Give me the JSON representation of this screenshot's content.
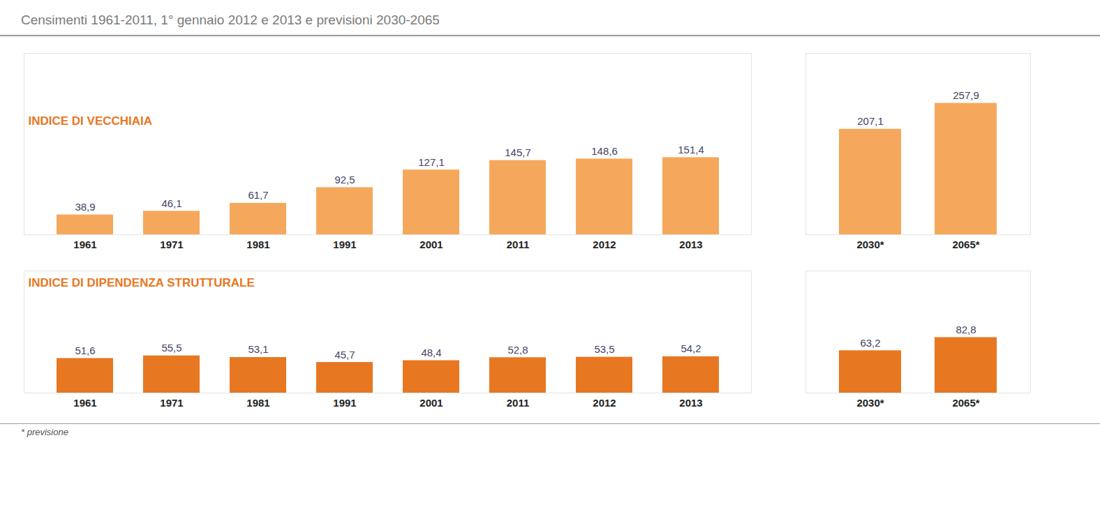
{
  "chart_data": [
    {
      "type": "bar",
      "title": "Censimenti 1961-2011, 1° gennaio 2012 e 2013 e previsioni 2030-2065",
      "categories": [
        "1961",
        "1971",
        "1981",
        "1991",
        "2001",
        "2011",
        "2012",
        "2013"
      ],
      "values": [
        38.9,
        46.1,
        61.7,
        92.5,
        127.1,
        145.7,
        148.6,
        151.4
      ],
      "value_labels": [
        "38,9",
        "46,1",
        "61,7",
        "92,5",
        "127,1",
        "145,7",
        "148,6",
        "151,4"
      ],
      "color": "#f5a85c",
      "ylim": [
        0,
        355.902
      ],
      "data_labels": true,
      "tick_labels": "x",
      "annotations": [
        {
          "text": "INDICE DI VECCHIAIA",
          "color": "#e87722"
        }
      ]
    },
    {
      "type": "bar",
      "categories": [
        "2030*",
        "2065*"
      ],
      "values": [
        207.1,
        257.9
      ],
      "value_labels": [
        "207,1",
        "257,9"
      ],
      "color": "#f5a85c",
      "ylim": [
        0,
        355.902
      ],
      "data_labels": true,
      "tick_labels": "x"
    },
    {
      "type": "bar",
      "categories": [
        "1961",
        "1971",
        "1981",
        "1991",
        "2001",
        "2011",
        "2012",
        "2013"
      ],
      "values": [
        51.6,
        55.5,
        53.1,
        45.7,
        48.4,
        52.8,
        53.5,
        54.2
      ],
      "value_labels": [
        "51,6",
        "55,5",
        "53,1",
        "45,7",
        "48,4",
        "52,8",
        "53,5",
        "54,2"
      ],
      "color": "#e87722",
      "ylim": [
        0,
        182.16
      ],
      "data_labels": true,
      "tick_labels": "x",
      "annotations": [
        {
          "text": "INDICE DI DIPENDENZA STRUTTURALE",
          "color": "#e87722"
        }
      ]
    },
    {
      "type": "bar",
      "categories": [
        "2030*",
        "2065*"
      ],
      "values": [
        63.2,
        82.8
      ],
      "value_labels": [
        "63,2",
        "82,8"
      ],
      "color": "#e87722",
      "ylim": [
        0,
        182.16
      ],
      "data_labels": true,
      "tick_labels": "x",
      "annotations": [
        "* previsione"
      ]
    }
  ]
}
